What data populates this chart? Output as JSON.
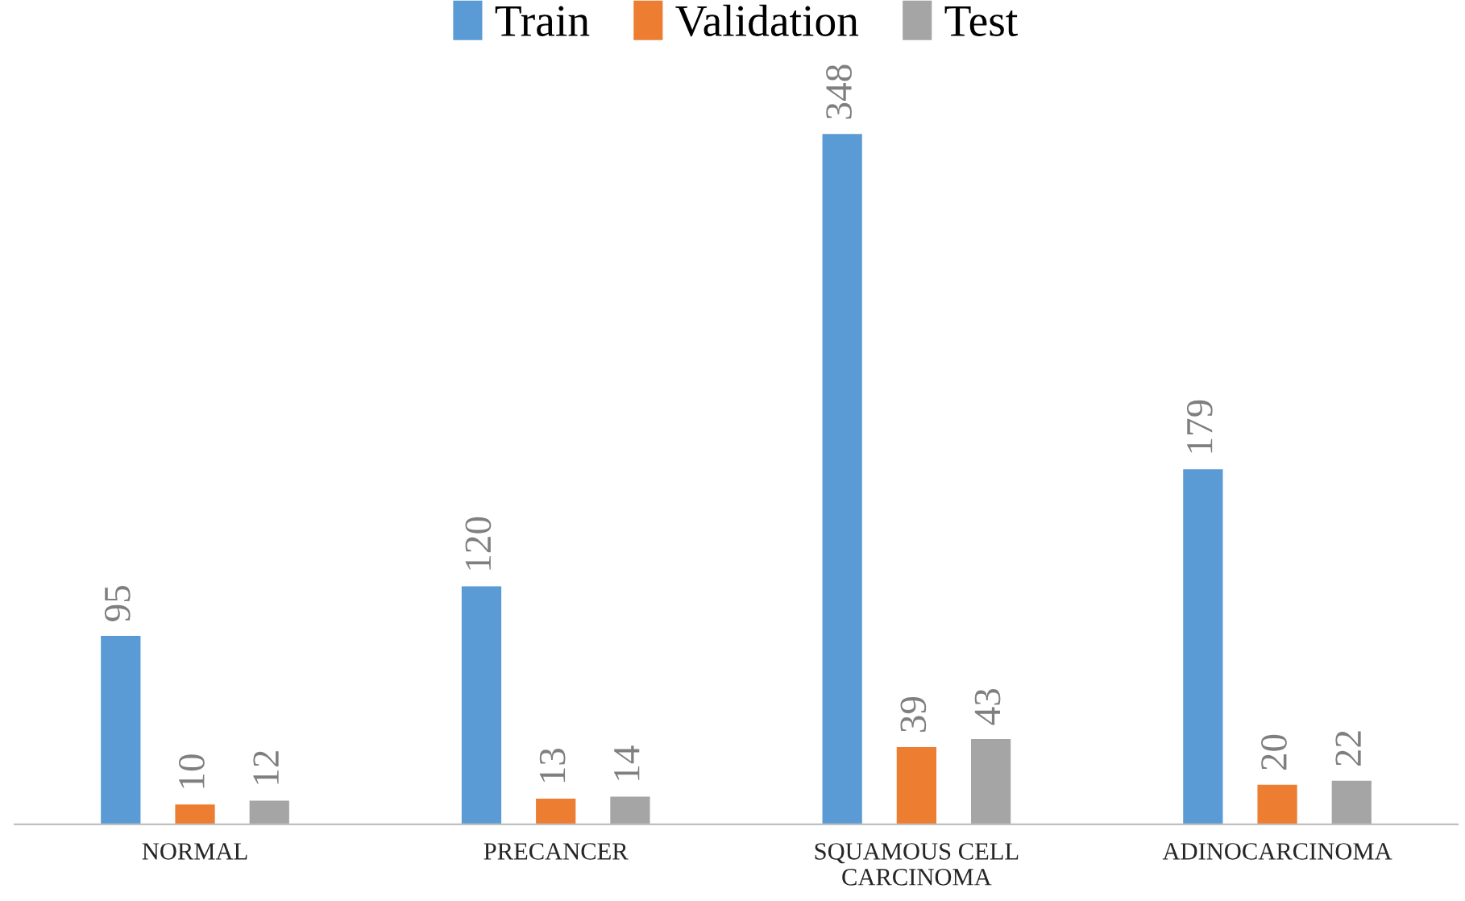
{
  "chart_data": {
    "type": "bar",
    "categories": [
      "NORMAL",
      "PRECANCER",
      "SQUAMOUS CELL\nCARCINOMA",
      "ADINOCARCINOMA"
    ],
    "series": [
      {
        "name": "Train",
        "color": "#5b9bd5",
        "values": [
          95,
          120,
          348,
          179
        ]
      },
      {
        "name": "Validation",
        "color": "#ed7d31",
        "values": [
          10,
          13,
          39,
          20
        ]
      },
      {
        "name": "Test",
        "color": "#a5a5a5",
        "values": [
          12,
          14,
          43,
          22
        ]
      }
    ],
    "data_labels": true,
    "legend": "top",
    "grid": false
  }
}
